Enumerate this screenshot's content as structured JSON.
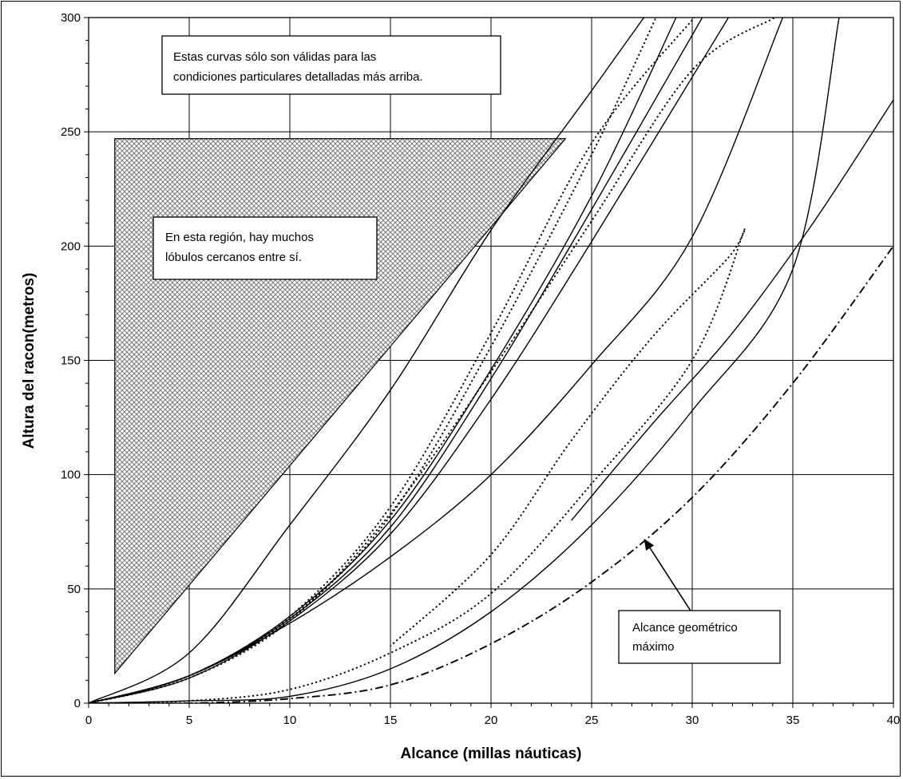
{
  "chart_data": {
    "type": "line",
    "title": "",
    "xlabel": "Alcance (millas náuticas)",
    "ylabel": "Altura del racon(metros)",
    "xlim": [
      0,
      40
    ],
    "ylim": [
      0,
      300
    ],
    "xticks": [
      0,
      5,
      10,
      15,
      20,
      25,
      30,
      35,
      40
    ],
    "yticks": [
      0,
      50,
      100,
      150,
      200,
      250,
      300
    ],
    "grid": true,
    "annotations": {
      "validity_note": [
        "Estas curvas sólo son válidas para las",
        "condiciones particulares detalladas más arriba."
      ],
      "region_note": [
        "En esta región, hay muchos",
        "lóbulos cercanos entre sí."
      ],
      "geometric_label": [
        "Alcance geométrico",
        "máximo"
      ]
    },
    "hatched_region": {
      "points": [
        [
          1.3,
          13
        ],
        [
          1.3,
          247
        ],
        [
          23.7,
          247
        ]
      ]
    },
    "arrow": {
      "from": [
        31.2,
        23
      ],
      "to": [
        27.6,
        72
      ]
    },
    "series": [
      {
        "style": "solid",
        "x": [
          0,
          5,
          10,
          15,
          20,
          25,
          27.6
        ],
        "y": [
          0,
          22,
          78,
          137,
          207,
          268,
          300
        ]
      },
      {
        "style": "solid",
        "x": [
          0,
          5,
          10,
          15,
          20,
          25,
          29.2
        ],
        "y": [
          0,
          12,
          38,
          80,
          146,
          222,
          300
        ]
      },
      {
        "style": "solid",
        "x": [
          0,
          5,
          10,
          15,
          20,
          25,
          30.5
        ],
        "y": [
          0,
          12,
          37,
          77,
          142,
          216,
          300
        ]
      },
      {
        "style": "solid",
        "x": [
          0,
          5,
          10,
          15,
          20,
          25,
          31.8
        ],
        "y": [
          0,
          11,
          36,
          74,
          133,
          202,
          300
        ]
      },
      {
        "style": "solid",
        "x": [
          0,
          5,
          10,
          15,
          20,
          25,
          30,
          34.5
        ],
        "y": [
          0,
          12,
          35,
          64,
          100,
          148,
          204,
          300
        ]
      },
      {
        "style": "solid",
        "x": [
          0,
          5,
          10,
          15,
          20,
          25,
          30,
          35,
          37.3
        ],
        "y": [
          0,
          1,
          3,
          15,
          40,
          78,
          128,
          190,
          300
        ]
      },
      {
        "style": "solid",
        "x": [
          24,
          28,
          32,
          36,
          40
        ],
        "y": [
          80,
          122,
          162,
          210,
          264
        ]
      },
      {
        "style": "dotted",
        "x": [
          0,
          5,
          10,
          15,
          20,
          25,
          28.2
        ],
        "y": [
          0,
          12,
          37,
          82,
          156,
          240,
          300
        ]
      },
      {
        "style": "dotted",
        "x": [
          0,
          5,
          10,
          15,
          20,
          25,
          30.1
        ],
        "y": [
          0,
          12,
          38,
          86,
          162,
          245,
          300
        ]
      },
      {
        "style": "dotted",
        "x": [
          0,
          5,
          10,
          15,
          20,
          25,
          30,
          34.1
        ],
        "y": [
          0,
          11,
          36,
          83,
          145,
          211,
          277,
          300
        ]
      },
      {
        "style": "dotted",
        "x": [
          0,
          5,
          10,
          15,
          20,
          25,
          30,
          32.5,
          31.8,
          28,
          24,
          20,
          15
        ],
        "y": [
          0,
          1,
          6,
          22,
          48,
          96,
          150,
          205,
          195,
          160,
          115,
          65,
          25
        ]
      },
      {
        "style": "dash-dot",
        "x": [
          0,
          5,
          10,
          15,
          20,
          25,
          30,
          35,
          40
        ],
        "y": [
          0,
          0,
          2,
          8,
          26,
          53,
          90,
          140,
          200
        ]
      }
    ]
  }
}
